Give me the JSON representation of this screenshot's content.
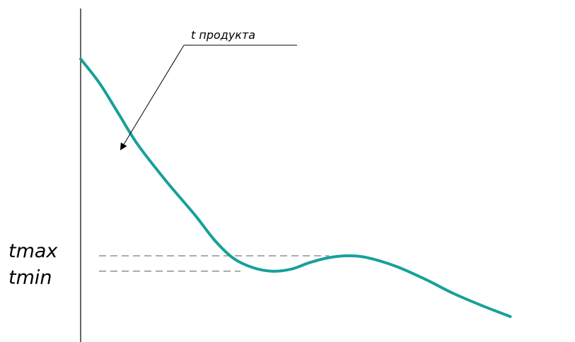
{
  "chart_data": {
    "type": "line",
    "series": [
      {
        "name": "t продукта",
        "color": "#17a09a",
        "points": [
          [
            0,
            90
          ],
          [
            4,
            82
          ],
          [
            8,
            72
          ],
          [
            12,
            62
          ],
          [
            18,
            50
          ],
          [
            24,
            39
          ],
          [
            28,
            31
          ],
          [
            32,
            25
          ],
          [
            36,
            22
          ],
          [
            40,
            20.8
          ],
          [
            44,
            21.4
          ],
          [
            48,
            23.6
          ],
          [
            52,
            25.2
          ],
          [
            56,
            25.8
          ],
          [
            60,
            25.2
          ],
          [
            66,
            22.4
          ],
          [
            72,
            18.3
          ],
          [
            78,
            13.6
          ],
          [
            84,
            9.6
          ],
          [
            90,
            6
          ]
        ]
      }
    ],
    "annotations": {
      "series_label": "t продукта",
      "tmax": {
        "label": "tmax",
        "value": 25.8
      },
      "tmin": {
        "label": "tmin",
        "value": 20.8
      }
    },
    "xlim": [
      0,
      100
    ],
    "ylim": [
      0,
      100
    ],
    "grid": false
  }
}
